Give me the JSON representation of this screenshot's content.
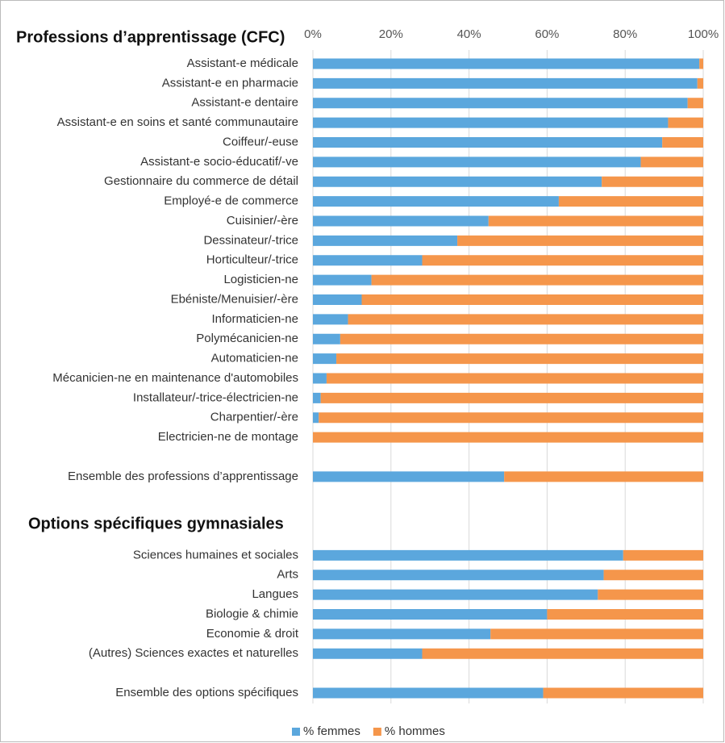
{
  "chart_data": {
    "type": "stacked-bar-horizontal",
    "headers": [
      "Professions d’apprentissage (CFC)",
      "Options spécifiques gymnasiales"
    ],
    "categories": [
      "Assistant-e médicale",
      "Assistant-e en pharmacie",
      "Assistant-e dentaire",
      "Assistant-e en soins et santé communautaire",
      "Coiffeur/-euse",
      "Assistant-e socio-éducatif/-ve",
      "Gestionnaire du commerce de détail",
      "Employé-e de commerce",
      "Cuisinier/-ère",
      "Dessinateur/-trice",
      "Horticulteur/-trice",
      "Logisticien-ne",
      "Ebéniste/Menuisier/-ère",
      "Informaticien-ne",
      "Polymécanicien-ne",
      "Automaticien-ne",
      "Mécanicien-ne en maintenance d'automobiles",
      "Installateur/-trice-électricien-ne",
      "Charpentier/-ère",
      "Electricien-ne de montage",
      null,
      "Ensemble des professions d’apprentissage",
      null,
      null,
      null,
      "Sciences humaines et sociales",
      "Arts",
      "Langues",
      "Biologie & chimie",
      "Economie & droit",
      "(Autres) Sciences exactes et naturelles",
      null,
      "Ensemble des options spécifiques"
    ],
    "series": [
      {
        "name": "% femmes",
        "color": "#5ba7dd",
        "values": [
          99,
          98.5,
          96,
          91,
          89.5,
          84,
          74,
          63,
          45,
          37,
          28,
          15,
          12.5,
          9,
          7,
          6,
          3.5,
          2,
          1.5,
          0,
          null,
          49,
          null,
          null,
          null,
          79.5,
          74.5,
          73,
          60,
          45.5,
          28,
          null,
          59
        ]
      },
      {
        "name": "% hommes",
        "color": "#f5964b",
        "values": [
          1,
          1.5,
          4,
          9,
          10.5,
          16,
          26,
          37,
          55,
          63,
          72,
          85,
          87.5,
          91,
          93,
          94,
          96.5,
          98,
          98.5,
          100,
          null,
          51,
          null,
          null,
          null,
          20.5,
          25.5,
          27,
          40,
          54.5,
          72,
          null,
          41
        ]
      }
    ],
    "xlim": [
      0,
      100
    ],
    "xticks": [
      {
        "value": 0,
        "label": "0%"
      },
      {
        "value": 20,
        "label": "20%"
      },
      {
        "value": 40,
        "label": "40%"
      },
      {
        "value": 60,
        "label": "60%"
      },
      {
        "value": 80,
        "label": "80%"
      },
      {
        "value": 100,
        "label": "100%"
      }
    ],
    "grid": true,
    "legend": "bottom"
  }
}
